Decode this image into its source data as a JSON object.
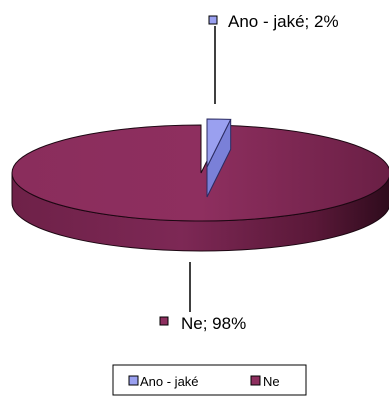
{
  "chart_data": {
    "type": "pie",
    "style": "3d",
    "categories": [
      "Ano - jaké",
      "Ne"
    ],
    "values": [
      2,
      98
    ],
    "data_labels": [
      "Ano - jaké; 2%",
      "Ne; 98%"
    ],
    "legend": {
      "position": "bottom",
      "entries": [
        "Ano - jaké",
        "Ne"
      ]
    },
    "colors": {
      "Ano - jaké": "#9aa0f0",
      "Ne": "#8e2f5f"
    }
  }
}
